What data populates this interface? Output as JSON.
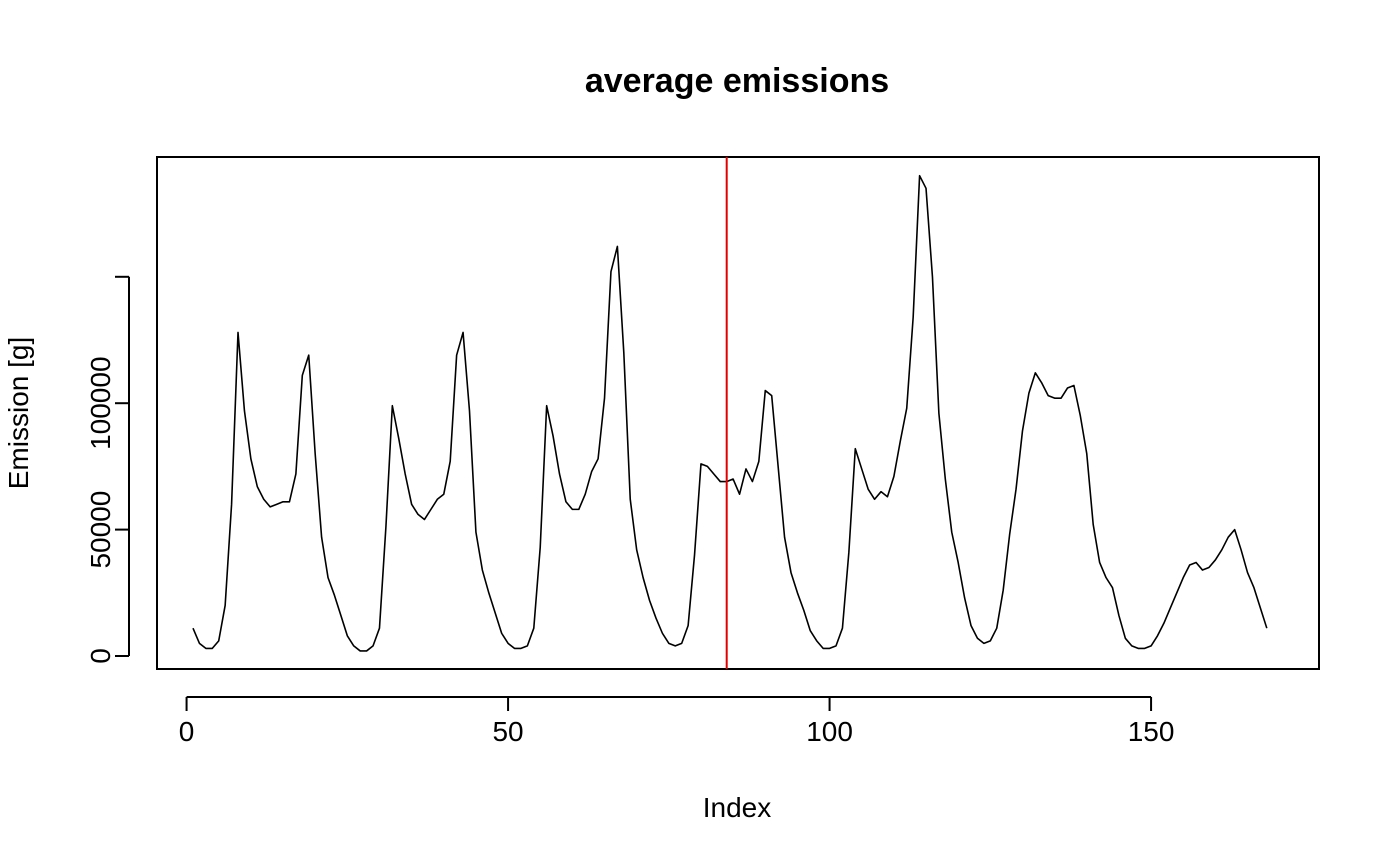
{
  "chart_data": {
    "type": "line",
    "title": "average emissions",
    "xlabel": "Index",
    "ylabel": "Emission [g]",
    "xlim": [
      1,
      168
    ],
    "ylim": [
      0,
      200000
    ],
    "x_ticks": [
      {
        "value": 0,
        "label": "0"
      },
      {
        "value": 50,
        "label": "50"
      },
      {
        "value": 100,
        "label": "100"
      },
      {
        "value": 150,
        "label": "150"
      }
    ],
    "y_ticks": [
      {
        "value": 0,
        "label": "0"
      },
      {
        "value": 50000,
        "label": "50000"
      },
      {
        "value": 100000,
        "label": "100000"
      },
      {
        "value": 150000,
        "label": ""
      }
    ],
    "grid": false,
    "legend": "none",
    "line_color": "#000000",
    "vline": {
      "x": 84,
      "color": "#e00000"
    },
    "series": [
      {
        "values": [
          11000,
          5000,
          3000,
          3000,
          6000,
          20000,
          60000,
          128000,
          97000,
          78000,
          67000,
          62000,
          59000,
          60000,
          61000,
          61000,
          72000,
          111000,
          119000,
          80000,
          47000,
          31000,
          24000,
          16000,
          8000,
          4000,
          2000,
          2000,
          4000,
          11000,
          51000,
          99000,
          86000,
          72000,
          60000,
          56000,
          54000,
          58000,
          62000,
          64000,
          77000,
          119000,
          128000,
          97000,
          49000,
          34000,
          25000,
          17000,
          9000,
          5000,
          3000,
          3000,
          4000,
          11000,
          43000,
          99000,
          87000,
          72000,
          61000,
          58000,
          58000,
          64000,
          73000,
          78000,
          102000,
          152000,
          162000,
          120000,
          62000,
          42000,
          31000,
          22000,
          15000,
          9000,
          5000,
          4000,
          5000,
          12000,
          40000,
          76000,
          75000,
          72000,
          69000,
          69000,
          70000,
          64000,
          74000,
          69000,
          77000,
          105000,
          103000,
          75000,
          47000,
          33000,
          25000,
          18000,
          10000,
          6000,
          3000,
          3000,
          4000,
          11000,
          41000,
          82000,
          74000,
          66000,
          62000,
          65000,
          63000,
          71000,
          85000,
          98000,
          134000,
          190000,
          185000,
          150000,
          96000,
          70000,
          49000,
          37000,
          23000,
          12000,
          7000,
          5000,
          6000,
          11000,
          26000,
          48000,
          66000,
          89000,
          104000,
          112000,
          108000,
          103000,
          102000,
          102000,
          106000,
          107000,
          95000,
          80000,
          52000,
          37000,
          31000,
          27000,
          16000,
          7000,
          4000,
          3000,
          3000,
          4000,
          8000,
          13000,
          19000,
          25000,
          31000,
          36000,
          37000,
          34000,
          35000,
          38000,
          42000,
          47000,
          50000,
          42000,
          33000,
          27000,
          19000,
          11000
        ]
      }
    ]
  }
}
